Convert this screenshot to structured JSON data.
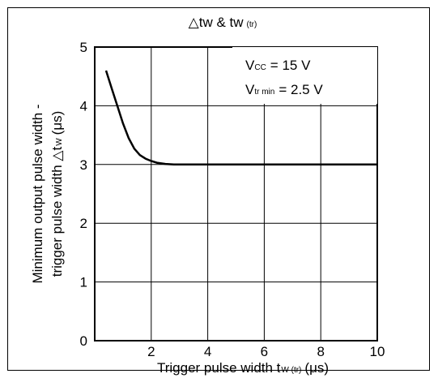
{
  "chart_data": {
    "type": "line",
    "title": {
      "main": "△tw & tw",
      "sub": "(tr)"
    },
    "xlabel": {
      "main": "Trigger pulse width t",
      "sub": "W (tr)",
      "unit": "(μs)"
    },
    "ylabel": {
      "line1": "Minimum output pulse width -",
      "line2_main": "trigger pulse width △t",
      "line2_sub": "W",
      "line2_unit": "(μs)"
    },
    "xlim": [
      0,
      10
    ],
    "ylim": [
      0,
      5
    ],
    "x_ticks": [
      "2",
      "4",
      "6",
      "8",
      "10"
    ],
    "y_ticks": [
      "0",
      "1",
      "2",
      "3",
      "4",
      "5"
    ],
    "grid": true,
    "annotations": [
      {
        "main": "V",
        "sub": "CC",
        "rest": "= 15 V"
      },
      {
        "main": "V",
        "sub": "tr min",
        "rest": "= 2.5 V"
      }
    ],
    "series": [
      {
        "x": [
          0.4,
          0.6,
          0.8,
          1.0,
          1.2,
          1.4,
          1.6,
          1.8,
          2.0,
          2.2,
          2.5,
          2.8,
          3.0,
          4.0,
          6.0,
          8.0,
          10.0
        ],
        "y": [
          4.6,
          4.3,
          4.0,
          3.7,
          3.45,
          3.27,
          3.16,
          3.1,
          3.06,
          3.03,
          3.01,
          3.0,
          3.0,
          3.0,
          3.0,
          3.0,
          3.0
        ]
      }
    ],
    "colors": {
      "line": "#000000",
      "grid": "#000000"
    }
  }
}
